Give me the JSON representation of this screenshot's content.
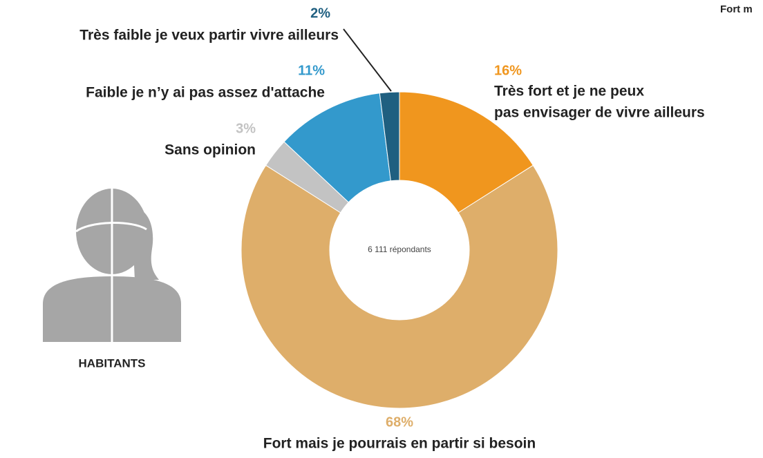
{
  "chart_data": {
    "type": "donut",
    "categories": [
      [
        "Très fort et je ne peux",
        "pas envisager de vivre ailleurs"
      ],
      [
        "Fort mais je pourrais en partir si besoin"
      ],
      [
        "Sans opinion"
      ],
      [
        "Faible je n’y ai pas assez d'attache"
      ],
      [
        "Très faible je veux partir vivre ailleurs"
      ]
    ],
    "values": [
      16,
      68,
      3,
      11,
      2
    ],
    "value_labels": [
      "16%",
      "68%",
      "3%",
      "11%",
      "2%"
    ],
    "colors": [
      "#f0961e",
      "#deae6a",
      "#c3c3c3",
      "#3399cc",
      "#1f5f80"
    ],
    "center_text": "6 111 répondants",
    "group_label": "HABITANTS",
    "corner_text": "Fort m"
  }
}
